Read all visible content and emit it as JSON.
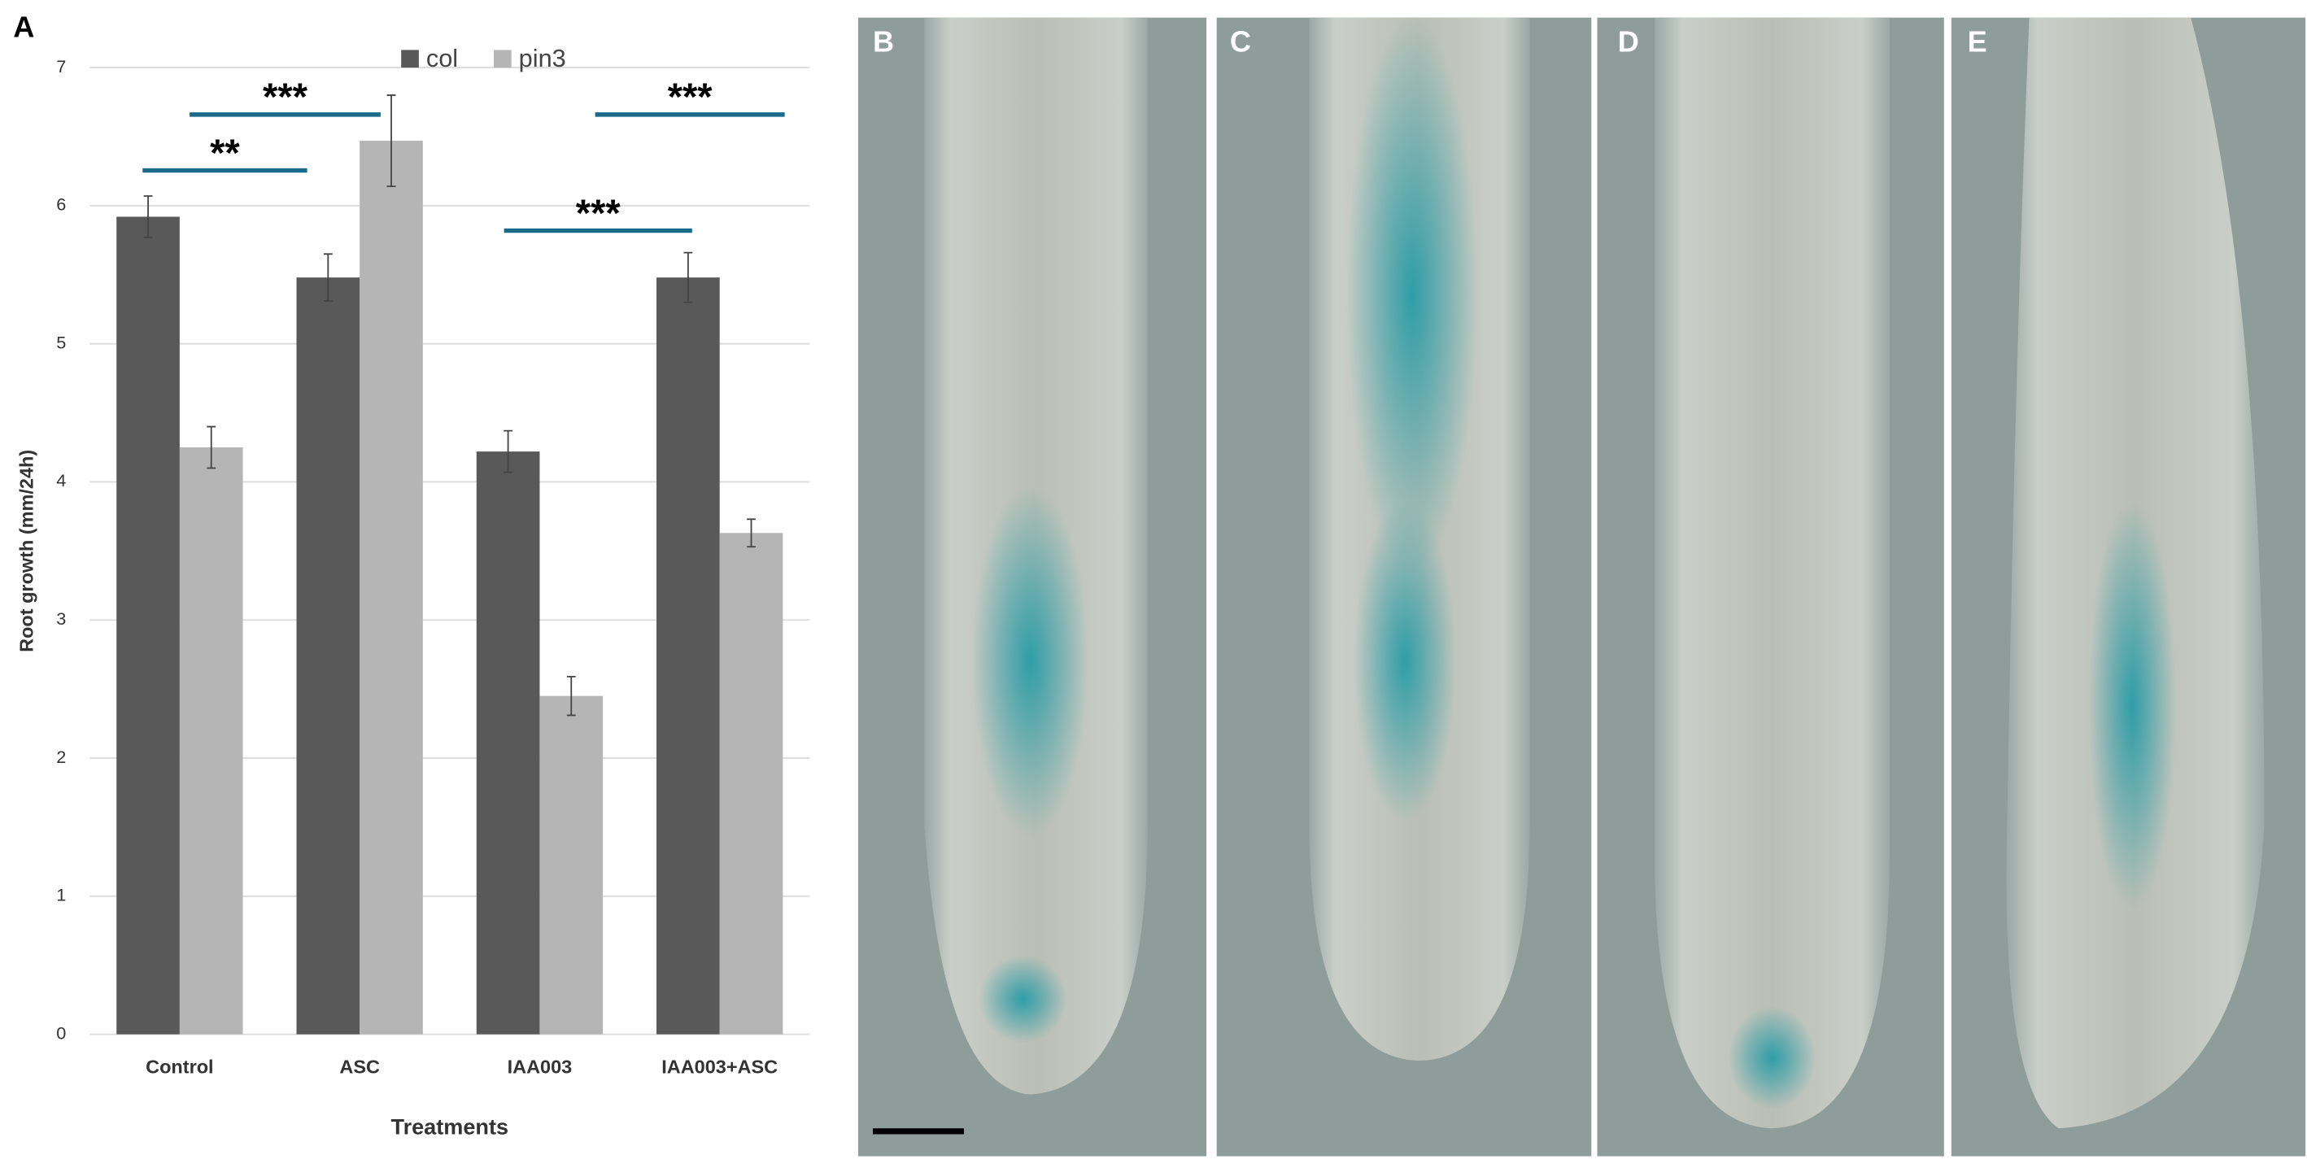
{
  "chart_data": {
    "type": "bar",
    "panel_label": "A",
    "x_label": "Treatments",
    "y_label": "Root growth (mm/24h)",
    "categories": [
      "Control",
      "ASC",
      "IAA003",
      "IAA003+ASC"
    ],
    "series": [
      {
        "name": "col",
        "color": "#595959",
        "values": [
          5.92,
          5.48,
          4.22,
          5.48
        ],
        "errors": [
          0.15,
          0.17,
          0.15,
          0.18
        ]
      },
      {
        "name": "pin3",
        "color": "#b5b5b5",
        "values": [
          4.25,
          6.47,
          2.45,
          3.63
        ],
        "errors": [
          0.15,
          0.33,
          0.14,
          0.1
        ]
      }
    ],
    "ylim": [
      0,
      7
    ],
    "yticks": [
      0,
      1,
      2,
      3,
      4,
      5,
      6,
      7
    ],
    "grid": true,
    "legend": "top",
    "annotations": [
      "**",
      "***",
      "***",
      "***"
    ]
  },
  "panels": [
    "B",
    "C",
    "D",
    "E"
  ]
}
